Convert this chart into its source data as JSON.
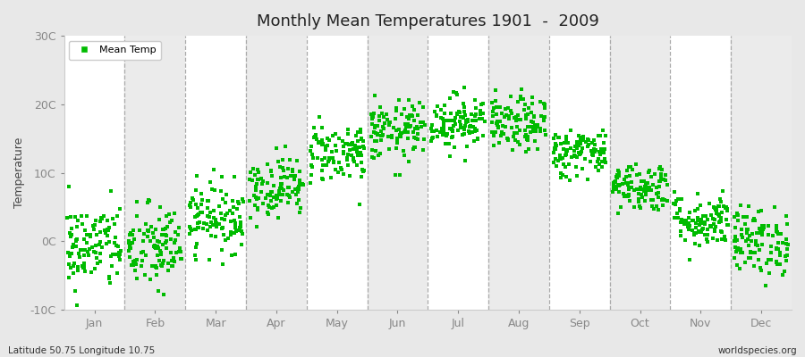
{
  "title": "Monthly Mean Temperatures 1901  -  2009",
  "ylabel": "Temperature",
  "ylim": [
    -10,
    30
  ],
  "ytick_values": [
    -10,
    0,
    10,
    20,
    30
  ],
  "ytick_labels": [
    "-10C",
    "0C",
    "10C",
    "20C",
    "30C"
  ],
  "months": [
    "Jan",
    "Feb",
    "Mar",
    "Apr",
    "May",
    "Jun",
    "Jul",
    "Aug",
    "Sep",
    "Oct",
    "Nov",
    "Dec"
  ],
  "dot_color": "#00bb00",
  "fig_bg": "#e8e8e8",
  "plot_bg": "#ffffff",
  "band_colors": [
    "#ffffff",
    "#ebebeb"
  ],
  "legend_label": "Mean Temp",
  "bottom_left": "Latitude 50.75 Longitude 10.75",
  "bottom_right": "worldspecies.org",
  "monthly_means": [
    -0.8,
    -1.0,
    3.5,
    8.0,
    13.0,
    16.0,
    17.5,
    17.0,
    13.0,
    8.0,
    3.0,
    0.0
  ],
  "monthly_stds": [
    3.2,
    3.2,
    2.5,
    2.2,
    2.2,
    2.2,
    2.0,
    2.0,
    1.8,
    1.8,
    2.0,
    2.5
  ],
  "n_years": 109,
  "seed": 42
}
